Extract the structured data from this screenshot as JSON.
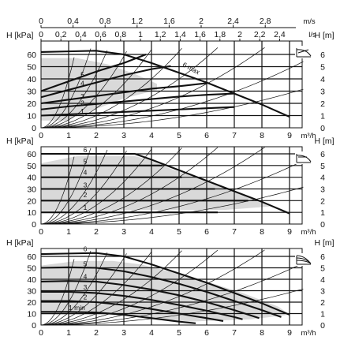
{
  "chart_data": [
    {
      "type": "line",
      "panel": "top",
      "mode_icon": "proportional-pressure-icon",
      "x_top1": {
        "unit": "m/s",
        "ticks": [
          "0",
          "0,4",
          "0,8",
          "1,2",
          "1,6",
          "2",
          "2,4",
          "2,8"
        ]
      },
      "x_top2": {
        "unit": "l/s",
        "ticks": [
          "0",
          "0,2",
          "0,4",
          "0,6",
          "0,8",
          "1",
          "1,2",
          "1,4",
          "1,6",
          "1,8",
          "2",
          "2,2",
          "2,4"
        ]
      },
      "x": {
        "unit": "m³/h",
        "ticks": [
          "0",
          "1",
          "2",
          "3",
          "4",
          "5",
          "6",
          "7",
          "8",
          "9"
        ],
        "xlim": [
          0,
          9.6
        ]
      },
      "y_left": {
        "label": "H [kPa]",
        "ticks": [
          "0",
          "10",
          "20",
          "30",
          "40",
          "50",
          "60"
        ],
        "ylim": [
          0,
          67
        ]
      },
      "y_right": {
        "label": "H [m]",
        "ticks": [
          "0",
          "1",
          "2",
          "3",
          "4",
          "5",
          "6"
        ]
      },
      "grid": true,
      "curve_labels": [
        "1",
        "2",
        "3",
        "4",
        "5",
        "6 max"
      ],
      "series": [
        {
          "name": "6 max",
          "points": [
            [
              0,
              62
            ],
            [
              1,
              62.5
            ],
            [
              2,
              63
            ],
            [
              3,
              60
            ],
            [
              4,
              53
            ],
            [
              5,
              45
            ],
            [
              6,
              37
            ],
            [
              7,
              28
            ],
            [
              8,
              19
            ],
            [
              9,
              9
            ]
          ]
        },
        {
          "name": "5",
          "points": [
            [
              0,
              30
            ],
            [
              1,
              38
            ],
            [
              2,
              46
            ],
            [
              3,
              53
            ],
            [
              3.8,
              60
            ]
          ]
        },
        {
          "name": "4",
          "points": [
            [
              0,
              25
            ],
            [
              1,
              31
            ],
            [
              2,
              37
            ],
            [
              3,
              43
            ],
            [
              4,
              48
            ],
            [
              4.7,
              50.5
            ]
          ]
        },
        {
          "name": "3",
          "points": [
            [
              0,
              20
            ],
            [
              1,
              23
            ],
            [
              2,
              26
            ],
            [
              3,
              29
            ],
            [
              4,
              32
            ],
            [
              5,
              34
            ],
            [
              6,
              36.5
            ]
          ]
        },
        {
          "name": "2",
          "points": [
            [
              0,
              15
            ],
            [
              1,
              17.5
            ],
            [
              2,
              19.5
            ],
            [
              3,
              21.5
            ],
            [
              4,
              23.5
            ],
            [
              5,
              25.5
            ],
            [
              6,
              27
            ],
            [
              7,
              28
            ]
          ]
        },
        {
          "name": "1",
          "points": [
            [
              0,
              10
            ],
            [
              2,
              12
            ],
            [
              4,
              14
            ],
            [
              6,
              16
            ],
            [
              7,
              17
            ]
          ]
        }
      ]
    },
    {
      "type": "line",
      "panel": "middle",
      "mode_icon": "constant-pressure-icon",
      "x": {
        "unit": "m³/h",
        "ticks": [
          "0",
          "1",
          "2",
          "3",
          "4",
          "5",
          "6",
          "7",
          "8",
          "9"
        ],
        "xlim": [
          0,
          9.6
        ]
      },
      "y_left": {
        "label": "H [kPa]",
        "ticks": [
          "0",
          "10",
          "20",
          "30",
          "40",
          "50",
          "60"
        ],
        "ylim": [
          0,
          67
        ]
      },
      "y_right": {
        "label": "H [m]",
        "ticks": [
          "0",
          "1",
          "2",
          "3",
          "4",
          "5",
          "6"
        ]
      },
      "grid": true,
      "curve_labels": [
        "1",
        "2",
        "3",
        "4",
        "5",
        "6"
      ],
      "series": [
        {
          "name": "6",
          "points": [
            [
              0,
              60
            ],
            [
              3.4,
              60
            ],
            [
              4,
              55
            ],
            [
              5,
              46
            ],
            [
              6,
              37
            ],
            [
              7,
              28
            ],
            [
              8,
              19
            ],
            [
              9,
              9
            ]
          ]
        },
        {
          "name": "5",
          "points": [
            [
              0,
              50
            ],
            [
              4.4,
              50
            ]
          ]
        },
        {
          "name": "4",
          "points": [
            [
              0,
              40
            ],
            [
              5.1,
              40
            ]
          ]
        },
        {
          "name": "3",
          "points": [
            [
              0,
              30
            ],
            [
              6.3,
              30
            ]
          ]
        },
        {
          "name": "2",
          "points": [
            [
              0,
              20
            ],
            [
              7.5,
              20
            ]
          ]
        },
        {
          "name": "1",
          "points": [
            [
              0,
              10
            ],
            [
              6.4,
              10
            ]
          ]
        }
      ]
    },
    {
      "type": "line",
      "panel": "bottom",
      "mode_icon": "constant-speed-icon",
      "x": {
        "unit": "m³/h",
        "ticks": [
          "0",
          "1",
          "2",
          "3",
          "4",
          "5",
          "6",
          "7",
          "8",
          "9"
        ],
        "xlim": [
          0,
          9.6
        ]
      },
      "y_left": {
        "label": "H [kPa]",
        "ticks": [
          "0",
          "10",
          "20",
          "30",
          "40",
          "50",
          "60"
        ],
        "ylim": [
          0,
          67
        ]
      },
      "y_right": {
        "label": "H [m]",
        "ticks": [
          "0",
          "1",
          "2",
          "3",
          "4",
          "5",
          "6"
        ]
      },
      "grid": true,
      "curve_labels": [
        "1 min",
        "2",
        "3",
        "4",
        "5",
        "6"
      ],
      "series": [
        {
          "name": "6",
          "points": [
            [
              0,
              62
            ],
            [
              1,
              62.5
            ],
            [
              2,
              63
            ],
            [
              3,
              60
            ],
            [
              4,
              53
            ],
            [
              5,
              45
            ],
            [
              6,
              37
            ],
            [
              7,
              28
            ],
            [
              8,
              19
            ],
            [
              9,
              9
            ]
          ]
        },
        {
          "name": "5",
          "points": [
            [
              0,
              50
            ],
            [
              1,
              50.5
            ],
            [
              2,
              50
            ],
            [
              3,
              47
            ],
            [
              4,
              42
            ],
            [
              5,
              36
            ],
            [
              6,
              29
            ],
            [
              7,
              21
            ],
            [
              8,
              13
            ],
            [
              8.7,
              7
            ]
          ]
        },
        {
          "name": "4",
          "points": [
            [
              0,
              38
            ],
            [
              1,
              38.5
            ],
            [
              2,
              38
            ],
            [
              3,
              35
            ],
            [
              4,
              31
            ],
            [
              5,
              26
            ],
            [
              6,
              20
            ],
            [
              7,
              13
            ],
            [
              7.9,
              6
            ]
          ]
        },
        {
          "name": "3",
          "points": [
            [
              0,
              29
            ],
            [
              1,
              29
            ],
            [
              2,
              28
            ],
            [
              3,
              25.5
            ],
            [
              4,
              22
            ],
            [
              5,
              17.5
            ],
            [
              6,
              12.5
            ],
            [
              7,
              7
            ],
            [
              7.3,
              5
            ]
          ]
        },
        {
          "name": "2",
          "points": [
            [
              0,
              21
            ],
            [
              1,
              21
            ],
            [
              2,
              20
            ],
            [
              3,
              17.5
            ],
            [
              4,
              14
            ],
            [
              5,
              10
            ],
            [
              6,
              6
            ],
            [
              6.6,
              3.5
            ]
          ]
        },
        {
          "name": "1 min",
          "points": [
            [
              0,
              11.5
            ],
            [
              1,
              11.5
            ],
            [
              2,
              11
            ],
            [
              3,
              9
            ],
            [
              4,
              6
            ],
            [
              5,
              3
            ],
            [
              5.6,
              1.5
            ]
          ]
        }
      ]
    }
  ]
}
